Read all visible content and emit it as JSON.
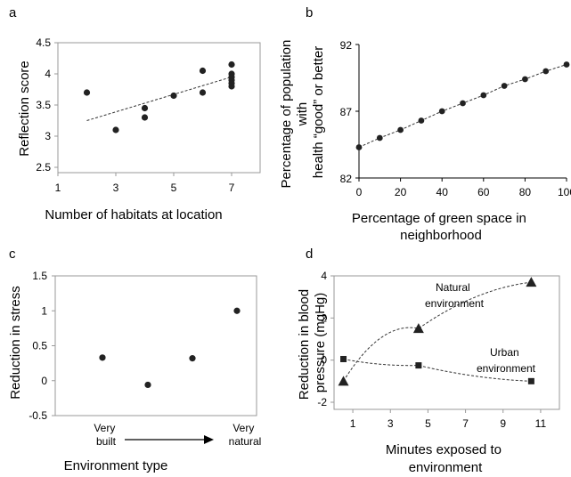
{
  "chart_data": [
    {
      "panel": "a",
      "type": "scatter",
      "xlabel": "Number of habitats at location",
      "ylabel": "Reflection score",
      "xlim": [
        1,
        7
      ],
      "ylim": [
        2.5,
        4.5
      ],
      "xticks": [
        "1",
        "3",
        "5",
        "7"
      ],
      "yticks": [
        "2.5",
        "3",
        "3.5",
        "4",
        "4.5"
      ],
      "points": [
        {
          "x": 2,
          "y": 3.7
        },
        {
          "x": 3,
          "y": 3.1
        },
        {
          "x": 4,
          "y": 3.45
        },
        {
          "x": 4,
          "y": 3.3
        },
        {
          "x": 5,
          "y": 3.65
        },
        {
          "x": 6,
          "y": 4.05
        },
        {
          "x": 6,
          "y": 3.7
        },
        {
          "x": 7,
          "y": 4.15
        },
        {
          "x": 7,
          "y": 4.0
        },
        {
          "x": 7,
          "y": 3.95
        },
        {
          "x": 7,
          "y": 3.9
        },
        {
          "x": 7,
          "y": 3.85
        },
        {
          "x": 7,
          "y": 3.8
        }
      ],
      "trendline": {
        "style": "dashed",
        "from": {
          "x": 2,
          "y": 3.25
        },
        "to": {
          "x": 7,
          "y": 3.95
        }
      }
    },
    {
      "panel": "b",
      "type": "line",
      "xlabel": "Percentage of green space in neighborhood",
      "ylabel": "Percentage of population with health “good” or better",
      "xlim": [
        0,
        100
      ],
      "ylim": [
        82,
        92
      ],
      "xticks": [
        "0",
        "20",
        "40",
        "60",
        "80",
        "100"
      ],
      "yticks": [
        "82",
        "87",
        "92"
      ],
      "x": [
        0,
        10,
        20,
        30,
        40,
        50,
        60,
        70,
        80,
        90,
        100
      ],
      "y": [
        84.3,
        85.0,
        85.6,
        86.3,
        87.0,
        87.6,
        88.2,
        88.9,
        89.4,
        90.0,
        90.5
      ],
      "line_style": "dashed",
      "marker": "circle"
    },
    {
      "panel": "c",
      "type": "scatter",
      "xlabel": "Environment type",
      "ylabel": "Reduction in stress",
      "ylim": [
        -0.5,
        1.5
      ],
      "yticks": [
        "-0.5",
        "0",
        "0.5",
        "1",
        "1.5"
      ],
      "x_end_labels": {
        "left": "Very built",
        "right": "Very natural"
      },
      "x_arrow": true,
      "points": [
        {
          "position": 1,
          "y": 0.33
        },
        {
          "position": 2,
          "y": -0.06
        },
        {
          "position": 3,
          "y": 0.32
        },
        {
          "position": 4,
          "y": 1.0
        }
      ]
    },
    {
      "panel": "d",
      "type": "line",
      "xlabel": "Minutes exposed to environment",
      "ylabel": "Reduction in blood pressure (mgHg)",
      "xlim": [
        0,
        12
      ],
      "ylim": [
        -2,
        4
      ],
      "xticks": [
        "1",
        "3",
        "5",
        "7",
        "9",
        "11"
      ],
      "yticks": [
        "-2",
        "0",
        "2",
        "4"
      ],
      "series": [
        {
          "name": "Natural environment",
          "marker": "triangle",
          "line_style": "dashed",
          "x": [
            0.5,
            4.5,
            10.5
          ],
          "y": [
            -1.0,
            1.5,
            3.7
          ]
        },
        {
          "name": "Urban environment",
          "marker": "square",
          "line_style": "dashed",
          "x": [
            0.5,
            4.5,
            10.5
          ],
          "y": [
            0.05,
            -0.25,
            -1.0
          ]
        }
      ],
      "series_labels": [
        {
          "lines": [
            "Natural",
            "environment"
          ]
        },
        {
          "lines": [
            "Urban",
            "environment"
          ]
        }
      ]
    }
  ]
}
